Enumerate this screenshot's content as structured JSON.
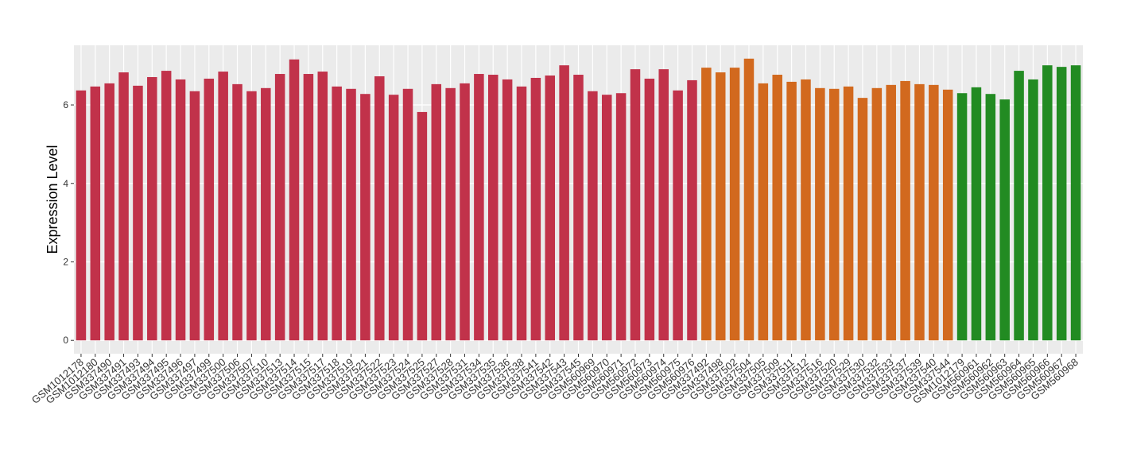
{
  "chart_data": {
    "type": "bar",
    "y_label": "Expression Level",
    "categories": [
      "GSM1012178",
      "GSM1012180",
      "GSM337490",
      "GSM337491",
      "GSM337493",
      "GSM337494",
      "GSM337495",
      "GSM337496",
      "GSM337497",
      "GSM337499",
      "GSM337500",
      "GSM337506",
      "GSM337507",
      "GSM337510",
      "GSM337513",
      "GSM337514",
      "GSM337515",
      "GSM337517",
      "GSM337518",
      "GSM337519",
      "GSM337521",
      "GSM337522",
      "GSM337523",
      "GSM337524",
      "GSM337525",
      "GSM337527",
      "GSM337528",
      "GSM337531",
      "GSM337534",
      "GSM337535",
      "GSM337536",
      "GSM337538",
      "GSM337541",
      "GSM337542",
      "GSM337543",
      "GSM337545",
      "GSM560969",
      "GSM560970",
      "GSM560971",
      "GSM560972",
      "GSM560973",
      "GSM560974",
      "GSM560975",
      "GSM560976",
      "GSM337492",
      "GSM337498",
      "GSM337502",
      "GSM337504",
      "GSM337505",
      "GSM337509",
      "GSM337511",
      "GSM337512",
      "GSM337516",
      "GSM337520",
      "GSM337529",
      "GSM337530",
      "GSM337532",
      "GSM337533",
      "GSM337537",
      "GSM337539",
      "GSM337540",
      "GSM337544",
      "GSM1012179",
      "GSM560961",
      "GSM560962",
      "GSM560963",
      "GSM560964",
      "GSM560965",
      "GSM560966",
      "GSM560967",
      "GSM560968"
    ],
    "values": [
      6.37,
      6.47,
      6.55,
      6.83,
      6.49,
      6.71,
      6.87,
      6.65,
      6.35,
      6.67,
      6.85,
      6.53,
      6.35,
      6.43,
      6.79,
      7.16,
      6.79,
      6.85,
      6.47,
      6.41,
      6.28,
      6.73,
      6.26,
      6.41,
      5.82,
      6.53,
      6.43,
      6.55,
      6.79,
      6.77,
      6.65,
      6.47,
      6.69,
      6.75,
      7.01,
      6.77,
      6.35,
      6.26,
      6.3,
      6.91,
      6.67,
      6.91,
      6.37,
      6.63,
      6.95,
      6.83,
      6.95,
      7.18,
      6.55,
      6.77,
      6.59,
      6.65,
      6.43,
      6.41,
      6.47,
      6.18,
      6.43,
      6.51,
      6.61,
      6.53,
      6.51,
      6.39,
      6.3,
      6.45,
      6.28,
      6.14,
      6.87,
      6.65,
      7.01,
      6.97,
      7.01
    ],
    "colors": [
      "#c1324a",
      "#c1324a",
      "#c1324a",
      "#c1324a",
      "#c1324a",
      "#c1324a",
      "#c1324a",
      "#c1324a",
      "#c1324a",
      "#c1324a",
      "#c1324a",
      "#c1324a",
      "#c1324a",
      "#c1324a",
      "#c1324a",
      "#c1324a",
      "#c1324a",
      "#c1324a",
      "#c1324a",
      "#c1324a",
      "#c1324a",
      "#c1324a",
      "#c1324a",
      "#c1324a",
      "#c1324a",
      "#c1324a",
      "#c1324a",
      "#c1324a",
      "#c1324a",
      "#c1324a",
      "#c1324a",
      "#c1324a",
      "#c1324a",
      "#c1324a",
      "#c1324a",
      "#c1324a",
      "#c1324a",
      "#c1324a",
      "#c1324a",
      "#c1324a",
      "#c1324a",
      "#c1324a",
      "#c1324a",
      "#c1324a",
      "#d2691e",
      "#d2691e",
      "#d2691e",
      "#d2691e",
      "#d2691e",
      "#d2691e",
      "#d2691e",
      "#d2691e",
      "#d2691e",
      "#d2691e",
      "#d2691e",
      "#d2691e",
      "#d2691e",
      "#d2691e",
      "#d2691e",
      "#d2691e",
      "#d2691e",
      "#d2691e",
      "#228b22",
      "#228b22",
      "#228b22",
      "#228b22",
      "#228b22",
      "#228b22",
      "#228b22",
      "#228b22",
      "#228b22"
    ],
    "ylim": [
      -0.34,
      7.52
    ],
    "yticks": [
      0,
      2,
      4,
      6
    ],
    "grid": true
  }
}
